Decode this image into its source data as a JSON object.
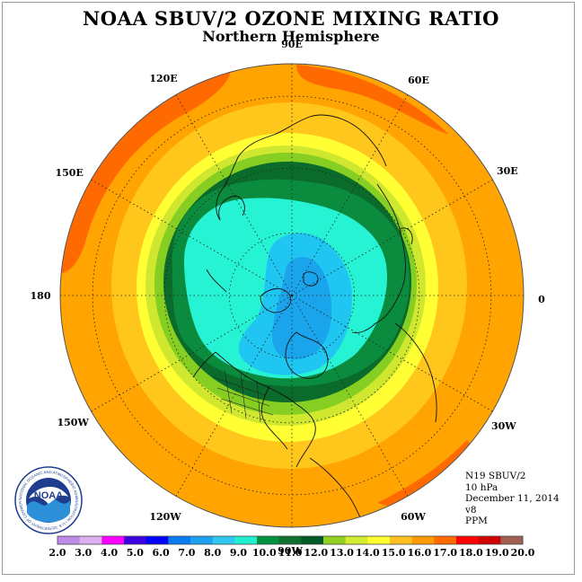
{
  "header": {
    "title": "NOAA SBUV/2 OZONE MIXING RATIO",
    "subtitle": "Northern Hemisphere"
  },
  "map": {
    "projection": "north-polar-stereographic",
    "longitude_labels": [
      "90E",
      "60E",
      "30E",
      "0",
      "30W",
      "60W",
      "90W",
      "120W",
      "150W",
      "180",
      "150E",
      "120E"
    ]
  },
  "info": {
    "satellite": "N19 SBUV/2",
    "level": "10 hPa",
    "date": "December 11, 2014",
    "version": "v8",
    "units": "PPM"
  },
  "logo": {
    "text": "NOAA",
    "ring_text": "NATIONAL OCEANIC AND ATMOSPHERIC ADMINISTRATION • U.S. DEPARTMENT OF COMMERCE"
  },
  "colorbar": {
    "ticks": [
      "2.0",
      "3.0",
      "4.0",
      "5.0",
      "6.0",
      "7.0",
      "8.0",
      "9.0",
      "10.0",
      "11.0",
      "12.0",
      "13.0",
      "14.0",
      "15.0",
      "16.0",
      "17.0",
      "18.0",
      "19.0",
      "20.0"
    ],
    "colors": [
      "#c08ae8",
      "#dcb0f0",
      "#ff00ff",
      "#3a00e0",
      "#0000ff",
      "#0a7cf0",
      "#1ea0f0",
      "#30c8f0",
      "#20f0d0",
      "#009040",
      "#107030",
      "#005a25",
      "#90d020",
      "#d4ec30",
      "#ffff30",
      "#ffc020",
      "#ff9a00",
      "#ff6a00",
      "#ff0000",
      "#d00000",
      "#a06050"
    ]
  },
  "field_colors": {
    "c10": "#26f3d3",
    "c9": "#20c6f2",
    "c8": "#1aa4ec",
    "c11": "#0b8b3d",
    "c12": "#0a6b2a",
    "c13": "#86ce22",
    "c14": "#cfe82f",
    "c15": "#ffff33",
    "c16": "#ffc61b",
    "c17": "#ffa400",
    "c18": "#ff6a00"
  }
}
